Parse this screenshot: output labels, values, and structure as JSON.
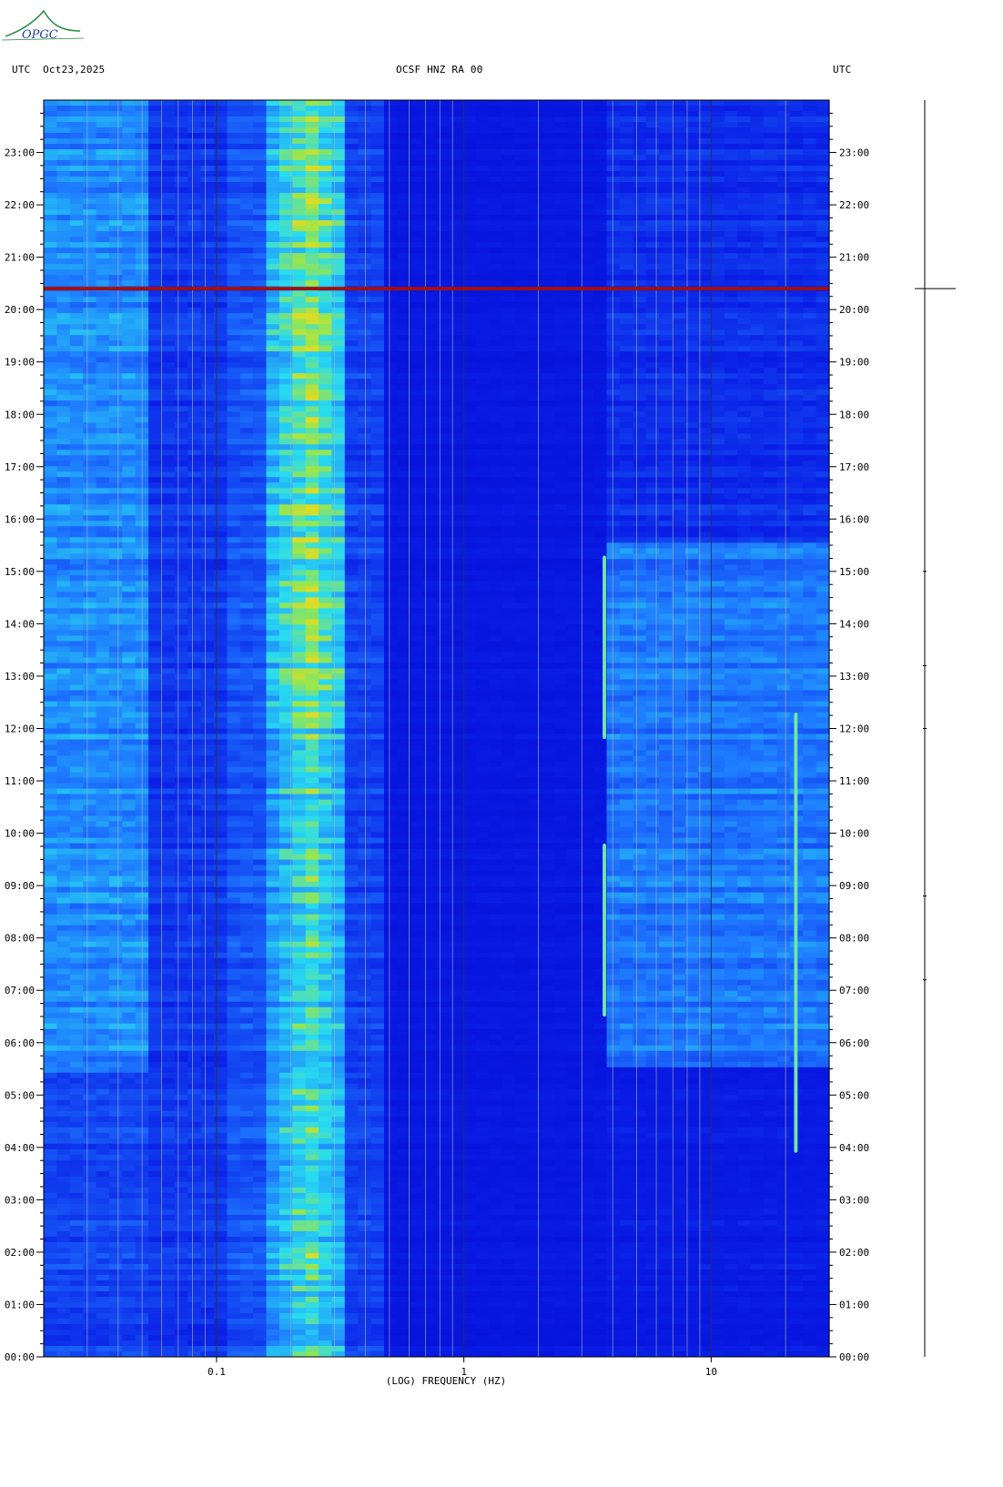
{
  "header": {
    "left": "UTC  Oct23,2025",
    "center": "OCSF HNZ RA 00",
    "right": "UTC",
    "logo_text": "OPGC"
  },
  "colors": {
    "background": "#0000c8",
    "low": "#0a14e0",
    "mid": "#1e78ff",
    "high": "#28dcf0",
    "peak": "#b4e646",
    "event_line": "#a01010",
    "frame": "#000000"
  },
  "chart_data": {
    "type": "heatmap",
    "title": "OCSF HNZ RA 00",
    "xlabel": "(LOG) FREQUENCY (HZ)",
    "ylabel": "UTC",
    "x_scale": "log",
    "xlim": [
      0.02,
      30
    ],
    "ylim_hours": [
      0,
      24
    ],
    "x_tick_labels": [
      "0.1",
      "1",
      "10"
    ],
    "x_tick_values": [
      0.1,
      1,
      10
    ],
    "y_tick_labels": [
      "00:00",
      "01:00",
      "02:00",
      "03:00",
      "04:00",
      "05:00",
      "06:00",
      "07:00",
      "08:00",
      "09:00",
      "10:00",
      "11:00",
      "12:00",
      "13:00",
      "14:00",
      "15:00",
      "16:00",
      "17:00",
      "18:00",
      "19:00",
      "20:00",
      "21:00",
      "22:00",
      "23:00"
    ],
    "energy_bands": [
      {
        "name": "microseism_low",
        "f_range": [
          0.02,
          0.05
        ],
        "level": 0.55
      },
      {
        "name": "microseism_secondary",
        "f_range": [
          0.15,
          0.35
        ],
        "level": 0.8
      },
      {
        "name": "high_freq_noise",
        "f_range": [
          4,
          30
        ],
        "level": 0.45
      }
    ],
    "events": [
      {
        "label": "broadband_event",
        "hour": 20.4,
        "f_range": [
          0.02,
          30
        ]
      },
      {
        "label": "tone_3.7Hz_a",
        "frequency": 3.7,
        "hour_range": [
          11.8,
          15.3
        ]
      },
      {
        "label": "tone_3.7Hz_b",
        "frequency": 3.7,
        "hour_range": [
          6.5,
          9.8
        ]
      },
      {
        "label": "tone_22Hz",
        "frequency": 22,
        "hour_range": [
          3.9,
          12.3
        ]
      }
    ],
    "grid": true
  }
}
